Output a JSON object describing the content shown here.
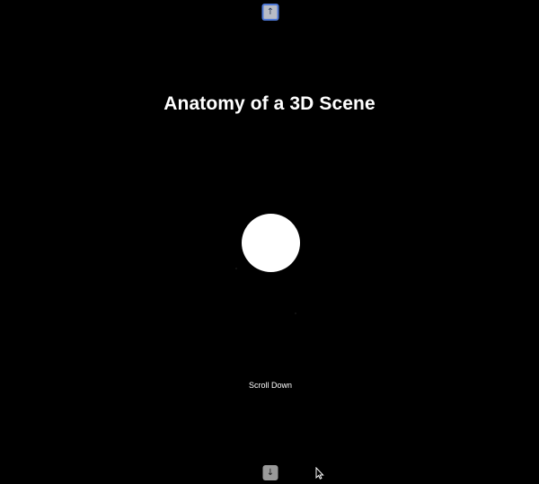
{
  "nav": {
    "up_icon": "↑",
    "down_icon": "↓"
  },
  "scene": {
    "title": "Anatomy of a 3D Scene",
    "scroll_hint": "Scroll Down"
  },
  "icons": {
    "up": "arrow-up-icon",
    "down": "arrow-down-icon",
    "cursor": "mouse-pointer-icon"
  },
  "colors": {
    "background": "#000000",
    "sphere": "#ffffff",
    "nav_focus_border": "#4f79d6"
  }
}
